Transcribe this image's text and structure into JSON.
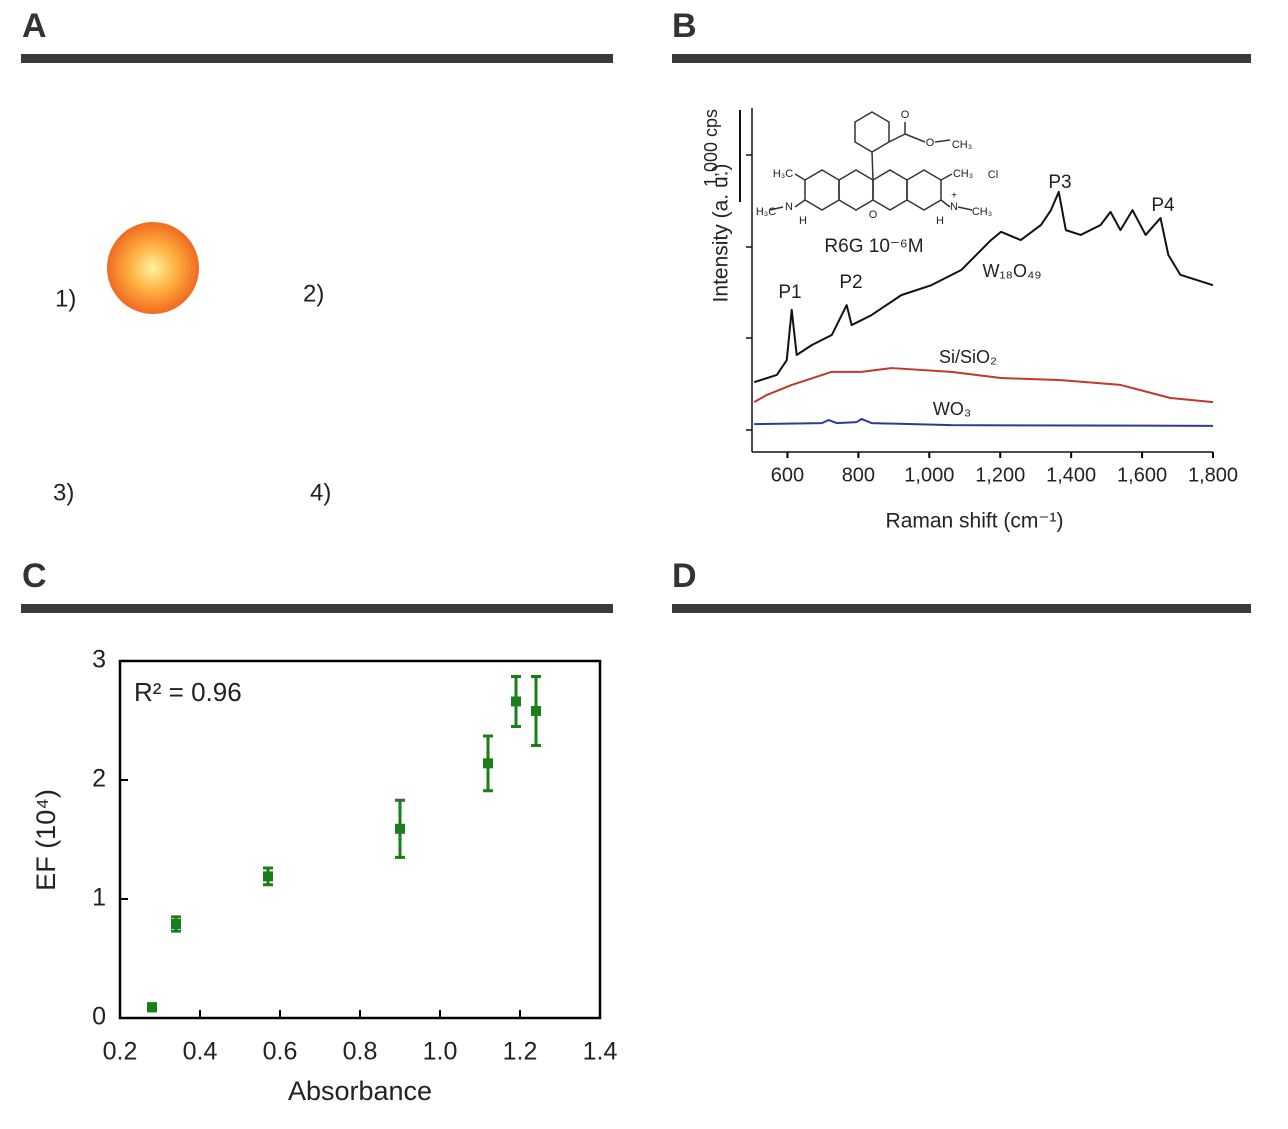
{
  "panels": [
    {
      "letter": "A",
      "labels": [
        "1)",
        "2)",
        "3)",
        "4)"
      ]
    },
    {
      "letter": "B"
    },
    {
      "letter": "C"
    },
    {
      "letter": "D"
    }
  ],
  "chart_data": [
    {
      "type": "line",
      "x_label": "Raman shift (cm⁻¹)",
      "y_label": "Intensity (a. u.)",
      "scale_label": "1,000 cps",
      "inset_label": "R6G 10⁻⁶M",
      "structure_labels": [
        "H₃C",
        "CH₃",
        "N",
        "H",
        "O",
        "Cl",
        "H₃C",
        "N",
        "H",
        "CH₃",
        "O",
        "O",
        "CH₃",
        "+"
      ],
      "annotations": [
        "P1",
        "P2",
        "P3",
        "P4"
      ],
      "xlim": [
        500,
        1800
      ],
      "ylim": [
        0,
        100
      ],
      "xticks": [
        600,
        800,
        {
          "value": 1000,
          "label": "1,000"
        },
        {
          "value": 1200,
          "label": "1,200"
        },
        {
          "value": 1400,
          "label": "1,400"
        },
        {
          "value": 1600,
          "label": "1,600"
        },
        {
          "value": 1800,
          "label": "1,800"
        }
      ],
      "series": [
        {
          "name": "W₁₈O₄₉",
          "color": "#111111",
          "x": [
            506,
            570,
            598,
            612,
            626,
            669,
            725,
            767,
            781,
            837,
            921,
            1006,
            1090,
            1174,
            1202,
            1258,
            1315,
            1343,
            1365,
            1385,
            1427,
            1483,
            1511,
            1539,
            1573,
            1610,
            1652,
            1674,
            1708,
            1800
          ],
          "values": [
            20.3,
            22.4,
            26.7,
            41.3,
            28.2,
            31.1,
            34.0,
            42.7,
            36.9,
            39.8,
            45.6,
            48.5,
            52.9,
            61.6,
            64.0,
            61.6,
            66.0,
            70.3,
            75.6,
            64.5,
            63.1,
            66.0,
            69.8,
            64.5,
            70.3,
            63.1,
            68.0,
            57.3,
            51.5,
            48.5
          ]
        },
        {
          "name": "Si/SiO₂",
          "color": "#c0392b",
          "x": [
            506,
            542,
            612,
            725,
            809,
            893,
            1062,
            1202,
            1371,
            1539,
            1680,
            1800
          ],
          "values": [
            14.5,
            16.6,
            19.5,
            23.3,
            23.3,
            24.4,
            23.3,
            21.5,
            20.9,
            19.5,
            15.7,
            14.5
          ]
        },
        {
          "name": "WO₃",
          "color": "#2e3a9a",
          "x": [
            506,
            697,
            716,
            739,
            795,
            809,
            837,
            1062,
            1800
          ],
          "values": [
            8.1,
            8.4,
            9.3,
            8.4,
            8.7,
            9.6,
            8.4,
            7.8,
            7.6
          ]
        }
      ]
    },
    {
      "type": "scatter",
      "x_label": "Absorbance",
      "y_label": "EF (10⁴)",
      "annotation": "R² = 0.96",
      "xlim": [
        0.2,
        1.4
      ],
      "ylim": [
        0,
        3
      ],
      "xticks": [
        0.2,
        0.4,
        0.6,
        0.8,
        {
          "value": 1,
          "label": "1.0"
        },
        1.2,
        1.4
      ],
      "yticks": [
        0,
        1,
        2,
        3
      ],
      "series": [
        {
          "color": "#1a7f1a",
          "x": [
            0.28,
            0.34,
            0.57,
            0.9,
            1.12,
            1.19,
            1.24
          ],
          "values": [
            0.09,
            0.79,
            1.19,
            1.59,
            2.14,
            2.66,
            2.58
          ],
          "errors": [
            0.03,
            0.06,
            0.07,
            0.24,
            0.23,
            0.21,
            0.29
          ]
        }
      ]
    }
  ]
}
